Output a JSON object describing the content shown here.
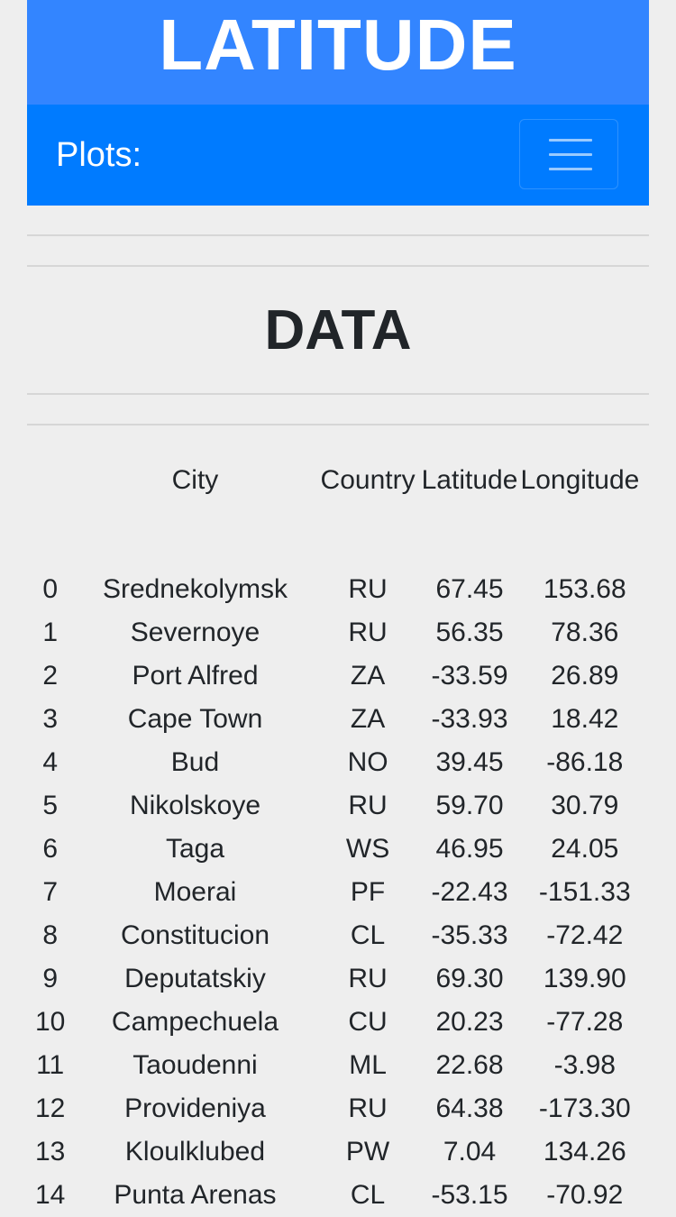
{
  "header": {
    "title": "LATITUDE"
  },
  "navbar": {
    "brand": "Plots:",
    "toggle_icon": "hamburger-menu-icon"
  },
  "section": {
    "title": "DATA"
  },
  "table": {
    "columns": [
      "",
      "City",
      "Country",
      "Latitude",
      "Longitude"
    ],
    "rows": [
      {
        "index": "0",
        "city": "Srednekolymsk",
        "country": "RU",
        "lat": "67.45",
        "lng": "153.68"
      },
      {
        "index": "1",
        "city": "Severnoye",
        "country": "RU",
        "lat": "56.35",
        "lng": "78.36"
      },
      {
        "index": "2",
        "city": "Port Alfred",
        "country": "ZA",
        "lat": "-33.59",
        "lng": "26.89"
      },
      {
        "index": "3",
        "city": "Cape Town",
        "country": "ZA",
        "lat": "-33.93",
        "lng": "18.42"
      },
      {
        "index": "4",
        "city": "Bud",
        "country": "NO",
        "lat": "39.45",
        "lng": "-86.18"
      },
      {
        "index": "5",
        "city": "Nikolskoye",
        "country": "RU",
        "lat": "59.70",
        "lng": "30.79"
      },
      {
        "index": "6",
        "city": "Taga",
        "country": "WS",
        "lat": "46.95",
        "lng": "24.05"
      },
      {
        "index": "7",
        "city": "Moerai",
        "country": "PF",
        "lat": "-22.43",
        "lng": "-151.33"
      },
      {
        "index": "8",
        "city": "Constitucion",
        "country": "CL",
        "lat": "-35.33",
        "lng": "-72.42"
      },
      {
        "index": "9",
        "city": "Deputatskiy",
        "country": "RU",
        "lat": "69.30",
        "lng": "139.90"
      },
      {
        "index": "10",
        "city": "Campechuela",
        "country": "CU",
        "lat": "20.23",
        "lng": "-77.28"
      },
      {
        "index": "11",
        "city": "Taoudenni",
        "country": "ML",
        "lat": "22.68",
        "lng": "-3.98"
      },
      {
        "index": "12",
        "city": "Provideniya",
        "country": "RU",
        "lat": "64.38",
        "lng": "-173.30"
      },
      {
        "index": "13",
        "city": "Kloulklubed",
        "country": "PW",
        "lat": "7.04",
        "lng": "134.26"
      },
      {
        "index": "14",
        "city": "Punta Arenas",
        "country": "CL",
        "lat": "-53.15",
        "lng": "-70.92"
      }
    ]
  },
  "colors": {
    "title_bar": "#3385ff",
    "navbar": "#007bff",
    "background": "#eeeeee"
  }
}
